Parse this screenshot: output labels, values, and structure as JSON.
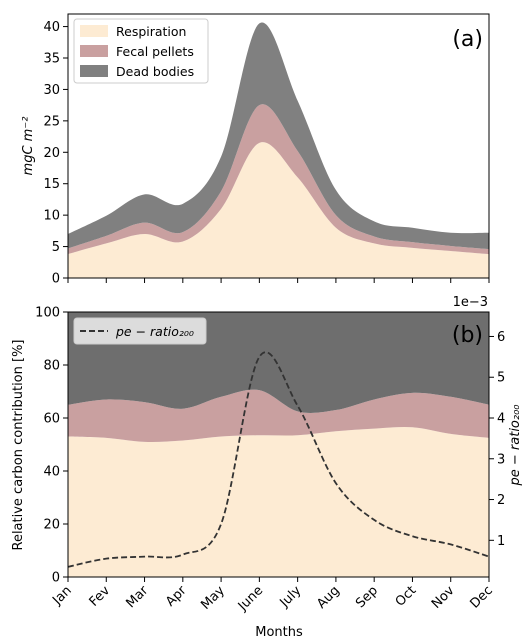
{
  "chart_data": [
    {
      "type": "area",
      "panel_label": "(a)",
      "stacked": true,
      "x": [
        "Jan",
        "Fev",
        "Mar",
        "Apr",
        "May",
        "June",
        "July",
        "Aug",
        "Sep",
        "Oct",
        "Nov",
        "Dec"
      ],
      "ylabel": "mgC m⁻²",
      "ylim": [
        0,
        42
      ],
      "yticks": [
        0,
        5,
        10,
        15,
        20,
        25,
        30,
        35,
        40
      ],
      "legend_position": "top-left",
      "series": [
        {
          "name": "Respiration",
          "color": "#fdebd3",
          "values": [
            3.8,
            5.5,
            7.0,
            5.8,
            11.0,
            21.5,
            16.0,
            8.0,
            5.5,
            4.8,
            4.3,
            3.8
          ]
        },
        {
          "name": "Fecal pellets",
          "color": "#c9a0a0",
          "values": [
            0.9,
            1.2,
            1.8,
            1.5,
            2.8,
            6.0,
            4.2,
            2.0,
            1.1,
            0.9,
            0.8,
            0.8
          ]
        },
        {
          "name": "Dead bodies",
          "color": "#808080",
          "values": [
            2.3,
            3.2,
            4.5,
            4.5,
            5.5,
            13.0,
            8.0,
            4.0,
            2.4,
            2.3,
            2.1,
            2.6
          ]
        }
      ]
    },
    {
      "type": "area",
      "panel_label": "(b)",
      "stacked": true,
      "x": [
        "Jan",
        "Fev",
        "Mar",
        "Apr",
        "May",
        "June",
        "July",
        "Aug",
        "Sep",
        "Oct",
        "Nov",
        "Dec"
      ],
      "xlabel": "Months",
      "ylabel": "Relative carbon contribution [%]",
      "ylim": [
        0,
        100
      ],
      "yticks": [
        0,
        20,
        40,
        60,
        80,
        100
      ],
      "bands": [
        {
          "color": "#fdebd3",
          "upper": [
            53,
            52.5,
            51,
            51.5,
            53,
            53.5,
            53.5,
            55,
            56,
            56.5,
            54,
            52.5
          ]
        },
        {
          "color": "#c9a0a0",
          "upper": [
            65,
            67,
            66,
            63.5,
            68,
            70.5,
            62.5,
            63,
            67,
            69.5,
            68,
            65
          ]
        },
        {
          "color": "#6e6e6e",
          "upper": [
            100,
            100,
            100,
            100,
            100,
            100,
            100,
            100,
            100,
            100,
            100,
            100
          ]
        }
      ],
      "secondary_axis": {
        "label": "pe − ratio₂₀₀",
        "ylim": [
          0.1,
          6.6
        ],
        "yticks": [
          1,
          2,
          3,
          4,
          5,
          6
        ],
        "offset_text": "1e−3"
      },
      "line": {
        "name": "pe − ratio₂₀₀",
        "color": "#333333",
        "values": [
          0.35,
          0.55,
          0.6,
          0.65,
          1.4,
          5.5,
          4.3,
          2.4,
          1.5,
          1.1,
          0.9,
          0.6
        ]
      },
      "legend_position": "top-left"
    }
  ]
}
